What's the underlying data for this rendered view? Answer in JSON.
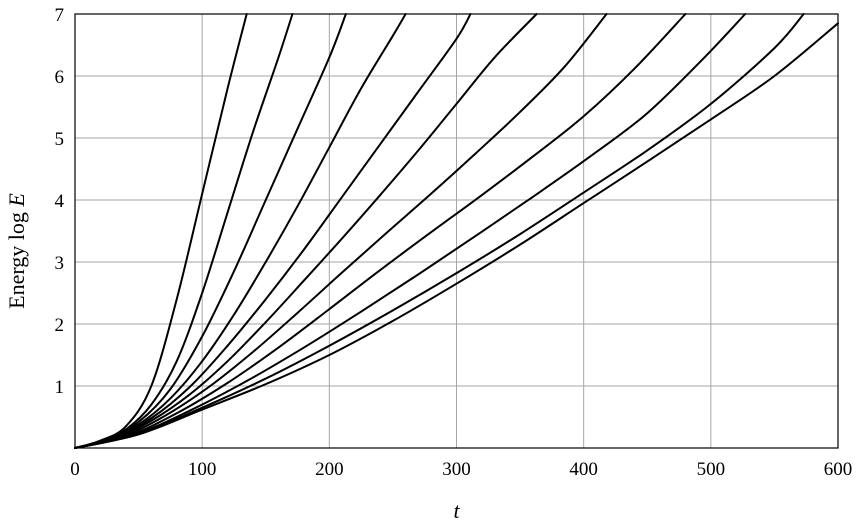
{
  "chart_data": {
    "type": "line",
    "xlabel": "t",
    "ylabel_prefix": "Energy log ",
    "ylabel_var": "E",
    "xlim": [
      0,
      600
    ],
    "ylim": [
      0,
      7
    ],
    "grid": true,
    "x_ticks": [
      0,
      100,
      200,
      300,
      400,
      500,
      600
    ],
    "y_ticks": [
      1,
      2,
      3,
      4,
      5,
      6,
      7
    ],
    "series": [
      {
        "x": [
          0,
          20,
          40,
          60,
          80,
          100,
          120,
          135
        ],
        "y": [
          0,
          0.12,
          0.35,
          1.0,
          2.4,
          4.1,
          5.8,
          7.0
        ]
      },
      {
        "x": [
          0,
          20,
          40,
          60,
          80,
          100,
          120,
          140,
          160,
          171
        ],
        "y": [
          0,
          0.11,
          0.3,
          0.7,
          1.4,
          2.5,
          3.8,
          5.1,
          6.3,
          7.0
        ]
      },
      {
        "x": [
          0,
          25,
          50,
          75,
          100,
          125,
          150,
          175,
          200,
          213
        ],
        "y": [
          0,
          0.13,
          0.42,
          0.95,
          1.8,
          2.85,
          4.0,
          5.15,
          6.3,
          7.0
        ]
      },
      {
        "x": [
          0,
          25,
          50,
          75,
          100,
          125,
          150,
          175,
          200,
          225,
          250,
          260
        ],
        "y": [
          0,
          0.13,
          0.38,
          0.8,
          1.4,
          2.15,
          3.0,
          3.9,
          4.85,
          5.8,
          6.65,
          7.0
        ]
      },
      {
        "x": [
          0,
          30,
          60,
          90,
          120,
          150,
          180,
          210,
          240,
          270,
          300,
          311
        ],
        "y": [
          0,
          0.15,
          0.48,
          0.98,
          1.65,
          2.4,
          3.2,
          4.05,
          4.9,
          5.75,
          6.6,
          7.0
        ]
      },
      {
        "x": [
          0,
          30,
          60,
          90,
          120,
          150,
          180,
          210,
          240,
          270,
          300,
          330,
          363
        ],
        "y": [
          0,
          0.14,
          0.44,
          0.86,
          1.4,
          2.03,
          2.7,
          3.38,
          4.08,
          4.8,
          5.55,
          6.3,
          7.0
        ]
      },
      {
        "x": [
          0,
          35,
          70,
          105,
          140,
          175,
          210,
          245,
          280,
          315,
          350,
          385,
          418
        ],
        "y": [
          0,
          0.16,
          0.51,
          0.98,
          1.55,
          2.18,
          2.83,
          3.47,
          4.1,
          4.75,
          5.42,
          6.15,
          7.0
        ]
      },
      {
        "x": [
          0,
          40,
          80,
          120,
          160,
          200,
          240,
          280,
          320,
          360,
          400,
          440,
          480
        ],
        "y": [
          0,
          0.18,
          0.56,
          1.05,
          1.62,
          2.24,
          2.87,
          3.48,
          4.08,
          4.7,
          5.35,
          6.12,
          7.0
        ]
      },
      {
        "x": [
          0,
          45,
          90,
          135,
          180,
          225,
          270,
          315,
          360,
          405,
          450,
          495,
          527
        ],
        "y": [
          0,
          0.2,
          0.6,
          1.08,
          1.62,
          2.2,
          2.8,
          3.42,
          4.05,
          4.7,
          5.4,
          6.3,
          7.0
        ]
      },
      {
        "x": [
          0,
          50,
          100,
          150,
          200,
          250,
          300,
          350,
          400,
          450,
          500,
          550,
          573
        ],
        "y": [
          0,
          0.23,
          0.65,
          1.12,
          1.65,
          2.22,
          2.82,
          3.45,
          4.12,
          4.8,
          5.55,
          6.45,
          7.0
        ]
      },
      {
        "x": [
          0,
          50,
          100,
          150,
          200,
          250,
          300,
          350,
          400,
          450,
          500,
          550,
          600
        ],
        "y": [
          0,
          0.22,
          0.62,
          1.03,
          1.5,
          2.05,
          2.65,
          3.28,
          3.95,
          4.62,
          5.3,
          6.0,
          6.85
        ]
      }
    ]
  }
}
